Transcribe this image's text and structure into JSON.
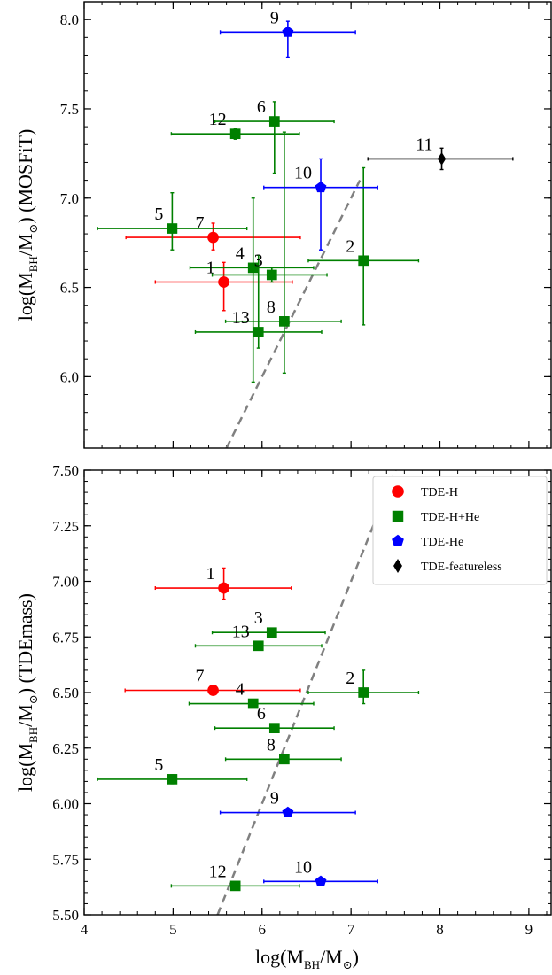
{
  "legend": [
    {
      "key": "TDE-H",
      "label": "TDE-H",
      "color": "#ff0000",
      "marker": "circle"
    },
    {
      "key": "TDE-H+He",
      "label": "TDE-H+He",
      "color": "#008000",
      "marker": "square"
    },
    {
      "key": "TDE-He",
      "label": "TDE-He",
      "color": "#0000ff",
      "marker": "pentagon"
    },
    {
      "key": "TDE-featureless",
      "label": "TDE-featureless",
      "color": "#000000",
      "marker": "diamond"
    }
  ],
  "chart_data": [
    {
      "type": "scatter",
      "panel": "top",
      "xlabel": "",
      "ylabel": {
        "prefix": "log(M",
        "sub": "BH",
        "mid": "/M",
        "sub2": "⊙",
        "suffix": ") (MOSFiT)"
      },
      "xlim": [
        4,
        9.25
      ],
      "ylim": [
        5.6,
        8.1
      ],
      "xticks": [
        4,
        5,
        6,
        7,
        8,
        9
      ],
      "xtick_labels_visible": false,
      "yticks": [
        6.0,
        6.5,
        7.0,
        7.5,
        8.0
      ],
      "ytick_labels": [
        "6.0",
        "6.5",
        "7.0",
        "7.5",
        "8.0"
      ],
      "reference_line": {
        "style": "dashed",
        "color": "#808080",
        "x": [
          5.6,
          7.1
        ],
        "y": [
          5.6,
          7.1
        ],
        "note": "one-to-one"
      },
      "points": [
        {
          "label": "1",
          "group": "TDE-H",
          "x": 5.57,
          "y": 6.53,
          "xerr": [
            0.77,
            0.77
          ],
          "yerr": [
            0.16,
            0.11
          ]
        },
        {
          "label": "7",
          "group": "TDE-H",
          "x": 5.45,
          "y": 6.78,
          "xerr": [
            0.98,
            0.98
          ],
          "yerr": [
            0.07,
            0.08
          ]
        },
        {
          "label": "2",
          "group": "TDE-H+He",
          "x": 7.14,
          "y": 6.65,
          "xerr": [
            0.62,
            0.62
          ],
          "yerr": [
            0.36,
            0.52
          ]
        },
        {
          "label": "3",
          "group": "TDE-H+He",
          "x": 6.11,
          "y": 6.57,
          "xerr": [
            0.67,
            0.62
          ],
          "yerr": [
            0.04,
            0.04
          ]
        },
        {
          "label": "4",
          "group": "TDE-H+He",
          "x": 5.9,
          "y": 6.61,
          "xerr": [
            0.71,
            0.68
          ],
          "yerr": [
            0.64,
            0.39
          ]
        },
        {
          "label": "5",
          "group": "TDE-H+He",
          "x": 4.99,
          "y": 6.83,
          "xerr": [
            0.84,
            0.84
          ],
          "yerr": [
            0.12,
            0.2
          ]
        },
        {
          "label": "6",
          "group": "TDE-H+He",
          "x": 6.14,
          "y": 7.43,
          "xerr": [
            0.67,
            0.67
          ],
          "yerr": [
            0.29,
            0.11
          ]
        },
        {
          "label": "8",
          "group": "TDE-H+He",
          "x": 6.25,
          "y": 6.31,
          "xerr": [
            0.66,
            0.64
          ],
          "yerr": [
            0.29,
            1.06
          ]
        },
        {
          "label": "12",
          "group": "TDE-H+He",
          "x": 5.7,
          "y": 7.36,
          "xerr": [
            0.72,
            0.72
          ],
          "yerr": [
            0.03,
            0.03
          ]
        },
        {
          "label": "13",
          "group": "TDE-H+He",
          "x": 5.96,
          "y": 6.25,
          "xerr": [
            0.71,
            0.71
          ],
          "yerr": [
            0.09,
            0.43
          ]
        },
        {
          "label": "9",
          "group": "TDE-He",
          "x": 6.29,
          "y": 7.93,
          "xerr": [
            0.76,
            0.76
          ],
          "yerr": [
            0.14,
            0.06
          ]
        },
        {
          "label": "10",
          "group": "TDE-He",
          "x": 6.66,
          "y": 7.06,
          "xerr": [
            0.64,
            0.64
          ],
          "yerr": [
            0.35,
            0.16
          ]
        },
        {
          "label": "11",
          "group": "TDE-featureless",
          "x": 8.02,
          "y": 7.22,
          "xerr": [
            0.83,
            0.8
          ],
          "yerr": [
            0.06,
            0.06
          ]
        }
      ]
    },
    {
      "type": "scatter",
      "panel": "bottom",
      "xlabel": {
        "prefix": "log(M",
        "sub": "BH",
        "mid": "/M",
        "sub2": "⊙",
        "suffix": ")"
      },
      "ylabel": {
        "prefix": "log(M",
        "sub": "BH",
        "mid": "/M",
        "sub2": "⊙",
        "suffix": ") (TDEmass)"
      },
      "xlim": [
        4,
        9.25
      ],
      "ylim": [
        5.5,
        7.5
      ],
      "xticks": [
        4,
        5,
        6,
        7,
        8,
        9
      ],
      "xtick_labels": [
        "4",
        "5",
        "6",
        "7",
        "8",
        "9"
      ],
      "yticks": [
        5.5,
        5.75,
        6.0,
        6.25,
        6.5,
        6.75,
        7.0,
        7.25,
        7.5
      ],
      "ytick_labels": [
        "5.50",
        "5.75",
        "6.00",
        "6.25",
        "6.50",
        "6.75",
        "7.00",
        "7.25",
        "7.50"
      ],
      "legend_position": "top-right",
      "reference_line": {
        "style": "dashed",
        "color": "#808080",
        "x": [
          5.5,
          7.5
        ],
        "y": [
          5.5,
          7.5
        ],
        "note": "one-to-one"
      },
      "points": [
        {
          "label": "1",
          "group": "TDE-H",
          "x": 5.57,
          "y": 6.97,
          "xerr": [
            0.77,
            0.76
          ],
          "yerr": [
            0.05,
            0.09
          ]
        },
        {
          "label": "7",
          "group": "TDE-H",
          "x": 5.45,
          "y": 6.51,
          "xerr": [
            0.99,
            0.98
          ],
          "yerr": [
            0.02,
            0.02
          ]
        },
        {
          "label": "2",
          "group": "TDE-H+He",
          "x": 7.14,
          "y": 6.5,
          "xerr": [
            0.62,
            0.62
          ],
          "yerr": [
            0.05,
            0.1
          ]
        },
        {
          "label": "3",
          "group": "TDE-H+He",
          "x": 6.11,
          "y": 6.77,
          "xerr": [
            0.67,
            0.6
          ],
          "yerr": [
            0.01,
            0.01
          ]
        },
        {
          "label": "4",
          "group": "TDE-H+He",
          "x": 5.9,
          "y": 6.45,
          "xerr": [
            0.72,
            0.68
          ],
          "yerr": [
            0.01,
            0.01
          ]
        },
        {
          "label": "5",
          "group": "TDE-H+He",
          "x": 4.99,
          "y": 6.11,
          "xerr": [
            0.84,
            0.84
          ],
          "yerr": [
            0.02,
            0.02
          ]
        },
        {
          "label": "6",
          "group": "TDE-H+He",
          "x": 6.14,
          "y": 6.34,
          "xerr": [
            0.67,
            0.67
          ],
          "yerr": [
            0.01,
            0.01
          ]
        },
        {
          "label": "8",
          "group": "TDE-H+He",
          "x": 6.25,
          "y": 6.2,
          "xerr": [
            0.66,
            0.64
          ],
          "yerr": [
            0.01,
            0.01
          ]
        },
        {
          "label": "12",
          "group": "TDE-H+He",
          "x": 5.7,
          "y": 5.63,
          "xerr": [
            0.72,
            0.72
          ],
          "yerr": [
            0.01,
            0.01
          ]
        },
        {
          "label": "13",
          "group": "TDE-H+He",
          "x": 5.96,
          "y": 6.71,
          "xerr": [
            0.71,
            0.71
          ],
          "yerr": [
            0.02,
            0.02
          ]
        },
        {
          "label": "9",
          "group": "TDE-He",
          "x": 6.29,
          "y": 5.96,
          "xerr": [
            0.76,
            0.76
          ],
          "yerr": [
            0.01,
            0.01
          ]
        },
        {
          "label": "10",
          "group": "TDE-He",
          "x": 6.66,
          "y": 5.65,
          "xerr": [
            0.64,
            0.64
          ],
          "yerr": [
            0.01,
            0.01
          ]
        }
      ]
    }
  ]
}
